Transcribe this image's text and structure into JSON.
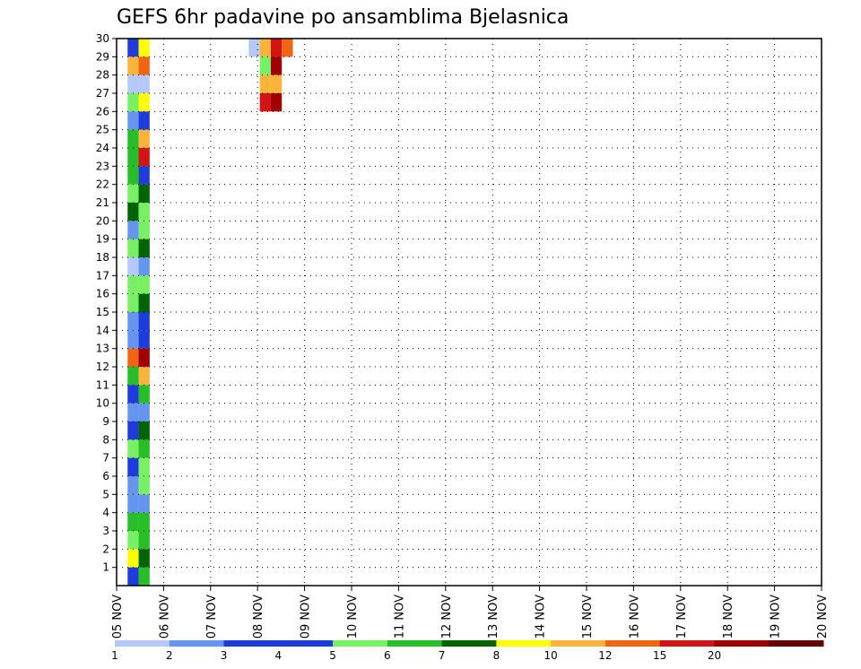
{
  "chart_data": {
    "type": "heatmap",
    "title": "GEFS 6hr padavine po ansamblima Bjelasnica",
    "x_ticks": [
      "05 NOV",
      "06 NOV",
      "07 NOV",
      "08 NOV",
      "09 NOV",
      "10 NOV",
      "11 NOV",
      "12 NOV",
      "13 NOV",
      "14 NOV",
      "15 NOV",
      "16 NOV",
      "17 NOV",
      "18 NOV",
      "19 NOV",
      "20 NOV"
    ],
    "y_ticks": [
      "1",
      "2",
      "3",
      "4",
      "5",
      "6",
      "7",
      "8",
      "9",
      "10",
      "11",
      "12",
      "13",
      "14",
      "15",
      "16",
      "17",
      "18",
      "19",
      "20",
      "21",
      "22",
      "23",
      "24",
      "25",
      "26",
      "27",
      "28",
      "29",
      "30"
    ],
    "y_range": [
      0,
      30
    ],
    "grid": true,
    "colorbar": {
      "labels": [
        "1",
        "2",
        "3",
        "4",
        "5",
        "6",
        "7",
        "8",
        "10",
        "12",
        "15",
        "20"
      ],
      "colors": [
        "#b4c8fa",
        "#6496f0",
        "#1e3cdc",
        "#1e3cdc",
        "#78f064",
        "#28be28",
        "#006400",
        "#ffff00",
        "#fab43c",
        "#f06414",
        "#d21414",
        "#a00000",
        "#640000"
      ]
    },
    "cells": [
      {
        "member": 30,
        "x_index": [
          1,
          2
        ],
        "values": [
          3,
          8
        ]
      },
      {
        "member": 30,
        "x_index": [
          12,
          13,
          14,
          15
        ],
        "values": [
          1,
          10,
          15,
          12
        ]
      },
      {
        "member": 29,
        "x_index": [
          1,
          2
        ],
        "values": [
          10,
          12
        ]
      },
      {
        "member": 29,
        "x_index": [
          13,
          14
        ],
        "values": [
          5,
          20
        ]
      },
      {
        "member": 28,
        "x_index": [
          1,
          2
        ],
        "values": [
          1,
          1
        ]
      },
      {
        "member": 28,
        "x_index": [
          13,
          14
        ],
        "values": [
          10,
          10
        ]
      },
      {
        "member": 27,
        "x_index": [
          1,
          2
        ],
        "values": [
          5,
          8
        ]
      },
      {
        "member": 27,
        "x_index": [
          13,
          14
        ],
        "values": [
          15,
          20
        ]
      },
      {
        "member": 26,
        "x_index": [
          1,
          2
        ],
        "values": [
          2,
          3
        ]
      },
      {
        "member": 25,
        "x_index": [
          1,
          2
        ],
        "values": [
          6,
          10
        ]
      },
      {
        "member": 24,
        "x_index": [
          1,
          2
        ],
        "values": [
          6,
          15
        ]
      },
      {
        "member": 23,
        "x_index": [
          1,
          2
        ],
        "values": [
          6,
          3
        ]
      },
      {
        "member": 22,
        "x_index": [
          1,
          2
        ],
        "values": [
          5,
          7
        ]
      },
      {
        "member": 21,
        "x_index": [
          1,
          2
        ],
        "values": [
          7,
          5
        ]
      },
      {
        "member": 20,
        "x_index": [
          1,
          2
        ],
        "values": [
          2,
          5
        ]
      },
      {
        "member": 19,
        "x_index": [
          1,
          2
        ],
        "values": [
          5,
          7
        ]
      },
      {
        "member": 18,
        "x_index": [
          1,
          2
        ],
        "values": [
          1,
          2
        ]
      },
      {
        "member": 17,
        "x_index": [
          1,
          2
        ],
        "values": [
          5,
          5
        ]
      },
      {
        "member": 16,
        "x_index": [
          1,
          2
        ],
        "values": [
          5,
          7
        ]
      },
      {
        "member": 15,
        "x_index": [
          1,
          2
        ],
        "values": [
          2,
          3
        ]
      },
      {
        "member": 14,
        "x_index": [
          1,
          2
        ],
        "values": [
          2,
          3
        ]
      },
      {
        "member": 13,
        "x_index": [
          1,
          2
        ],
        "values": [
          12,
          20
        ]
      },
      {
        "member": 12,
        "x_index": [
          1,
          2
        ],
        "values": [
          6,
          10
        ]
      },
      {
        "member": 11,
        "x_index": [
          1,
          2
        ],
        "values": [
          3,
          6
        ]
      },
      {
        "member": 10,
        "x_index": [
          1,
          2
        ],
        "values": [
          2,
          2
        ]
      },
      {
        "member": 9,
        "x_index": [
          1,
          2
        ],
        "values": [
          3,
          7
        ]
      },
      {
        "member": 8,
        "x_index": [
          1,
          2
        ],
        "values": [
          5,
          6
        ]
      },
      {
        "member": 7,
        "x_index": [
          1,
          2
        ],
        "values": [
          3,
          5
        ]
      },
      {
        "member": 6,
        "x_index": [
          1,
          2
        ],
        "values": [
          2,
          5
        ]
      },
      {
        "member": 5,
        "x_index": [
          1,
          2
        ],
        "values": [
          2,
          2
        ]
      },
      {
        "member": 4,
        "x_index": [
          1,
          2
        ],
        "values": [
          6,
          6
        ]
      },
      {
        "member": 3,
        "x_index": [
          1,
          2
        ],
        "values": [
          5,
          6
        ]
      },
      {
        "member": 2,
        "x_index": [
          1,
          2
        ],
        "values": [
          8,
          7
        ]
      },
      {
        "member": 1,
        "x_index": [
          1,
          2
        ],
        "values": [
          3,
          6
        ]
      }
    ]
  }
}
